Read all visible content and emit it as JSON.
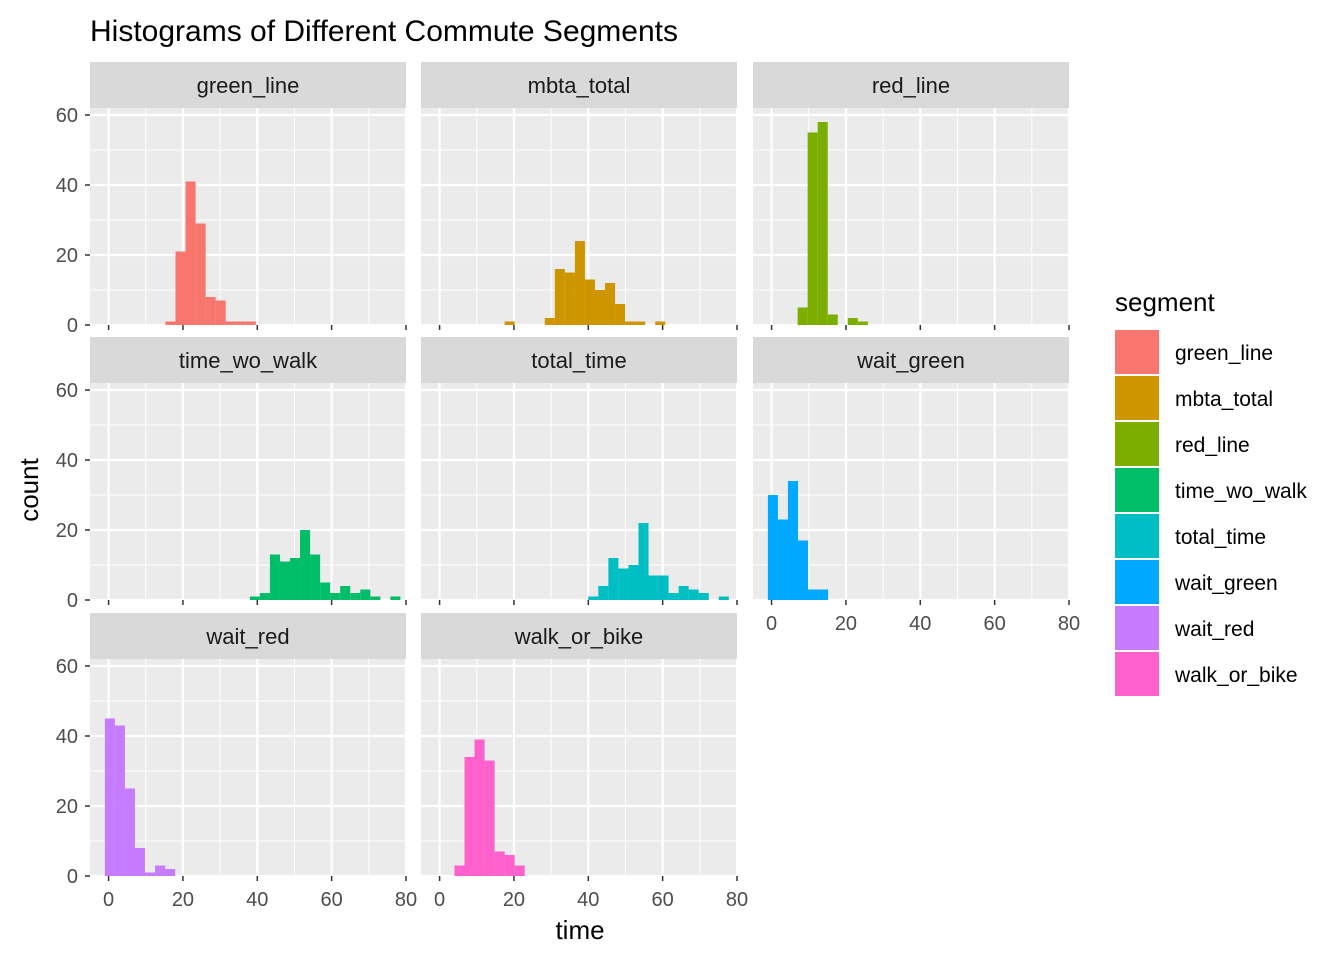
{
  "chart_data": {
    "type": "bar",
    "title": "Histograms of Different Commute Segments",
    "xlabel": "time",
    "ylabel": "count",
    "xlim": [
      -5,
      80
    ],
    "ylim": [
      0,
      62
    ],
    "x_ticks": [
      0,
      20,
      40,
      60,
      80
    ],
    "y_ticks": [
      0,
      20,
      40,
      60
    ],
    "bin_width": 2.7,
    "grid": true,
    "legend": {
      "title": "segment",
      "position": "right",
      "items": [
        {
          "label": "green_line",
          "color": "#F8766D"
        },
        {
          "label": "mbta_total",
          "color": "#CD9600"
        },
        {
          "label": "red_line",
          "color": "#7CAE00"
        },
        {
          "label": "time_wo_walk",
          "color": "#00BE67"
        },
        {
          "label": "total_time",
          "color": "#00BFC4"
        },
        {
          "label": "wait_green",
          "color": "#00A9FF"
        },
        {
          "label": "wait_red",
          "color": "#C77CFF"
        },
        {
          "label": "walk_or_bike",
          "color": "#FF61CC"
        }
      ]
    },
    "panels": [
      {
        "name": "green_line",
        "color": "#F8766D",
        "bins": [
          {
            "x0": 15.3,
            "x1": 18.0,
            "count": 1
          },
          {
            "x0": 18.0,
            "x1": 20.7,
            "count": 21
          },
          {
            "x0": 20.7,
            "x1": 23.4,
            "count": 41
          },
          {
            "x0": 23.4,
            "x1": 26.1,
            "count": 29
          },
          {
            "x0": 26.1,
            "x1": 28.8,
            "count": 8
          },
          {
            "x0": 28.8,
            "x1": 31.5,
            "count": 7
          },
          {
            "x0": 31.5,
            "x1": 34.2,
            "count": 1
          },
          {
            "x0": 34.2,
            "x1": 36.9,
            "count": 1
          },
          {
            "x0": 36.9,
            "x1": 39.6,
            "count": 1
          }
        ]
      },
      {
        "name": "mbta_total",
        "color": "#CD9600",
        "bins": [
          {
            "x0": 17.5,
            "x1": 20.2,
            "count": 1
          },
          {
            "x0": 28.3,
            "x1": 31.0,
            "count": 2
          },
          {
            "x0": 31.0,
            "x1": 33.7,
            "count": 16
          },
          {
            "x0": 33.7,
            "x1": 36.4,
            "count": 15
          },
          {
            "x0": 36.4,
            "x1": 39.1,
            "count": 24
          },
          {
            "x0": 39.1,
            "x1": 41.8,
            "count": 13
          },
          {
            "x0": 41.8,
            "x1": 44.5,
            "count": 10
          },
          {
            "x0": 44.5,
            "x1": 47.2,
            "count": 12
          },
          {
            "x0": 47.2,
            "x1": 49.9,
            "count": 6
          },
          {
            "x0": 49.9,
            "x1": 52.6,
            "count": 1
          },
          {
            "x0": 52.6,
            "x1": 55.3,
            "count": 1
          },
          {
            "x0": 58.0,
            "x1": 60.7,
            "count": 1
          }
        ]
      },
      {
        "name": "red_line",
        "color": "#7CAE00",
        "bins": [
          {
            "x0": 7.0,
            "x1": 9.7,
            "count": 5
          },
          {
            "x0": 9.7,
            "x1": 12.4,
            "count": 55
          },
          {
            "x0": 12.4,
            "x1": 15.1,
            "count": 58
          },
          {
            "x0": 15.1,
            "x1": 17.8,
            "count": 3
          },
          {
            "x0": 20.5,
            "x1": 23.2,
            "count": 2
          },
          {
            "x0": 23.2,
            "x1": 25.9,
            "count": 1
          }
        ]
      },
      {
        "name": "time_wo_walk",
        "color": "#00BE67",
        "bins": [
          {
            "x0": 38.0,
            "x1": 40.7,
            "count": 1
          },
          {
            "x0": 40.7,
            "x1": 43.4,
            "count": 2
          },
          {
            "x0": 43.4,
            "x1": 46.1,
            "count": 13
          },
          {
            "x0": 46.1,
            "x1": 48.8,
            "count": 11
          },
          {
            "x0": 48.8,
            "x1": 51.5,
            "count": 12
          },
          {
            "x0": 51.5,
            "x1": 54.2,
            "count": 20
          },
          {
            "x0": 54.2,
            "x1": 56.9,
            "count": 13
          },
          {
            "x0": 56.9,
            "x1": 59.6,
            "count": 5
          },
          {
            "x0": 59.6,
            "x1": 62.3,
            "count": 2
          },
          {
            "x0": 62.3,
            "x1": 65.0,
            "count": 4
          },
          {
            "x0": 65.0,
            "x1": 67.7,
            "count": 2
          },
          {
            "x0": 67.7,
            "x1": 70.4,
            "count": 3
          },
          {
            "x0": 70.4,
            "x1": 73.1,
            "count": 1
          },
          {
            "x0": 75.8,
            "x1": 78.5,
            "count": 1
          }
        ]
      },
      {
        "name": "total_time",
        "color": "#00BFC4",
        "bins": [
          {
            "x0": 40.0,
            "x1": 42.7,
            "count": 1
          },
          {
            "x0": 42.7,
            "x1": 45.4,
            "count": 4
          },
          {
            "x0": 45.4,
            "x1": 48.1,
            "count": 12
          },
          {
            "x0": 48.1,
            "x1": 50.8,
            "count": 9
          },
          {
            "x0": 50.8,
            "x1": 53.5,
            "count": 10
          },
          {
            "x0": 53.5,
            "x1": 56.2,
            "count": 22
          },
          {
            "x0": 56.2,
            "x1": 58.9,
            "count": 7
          },
          {
            "x0": 58.9,
            "x1": 61.6,
            "count": 7
          },
          {
            "x0": 61.6,
            "x1": 64.3,
            "count": 2
          },
          {
            "x0": 64.3,
            "x1": 67.0,
            "count": 4
          },
          {
            "x0": 67.0,
            "x1": 69.7,
            "count": 3
          },
          {
            "x0": 69.7,
            "x1": 72.4,
            "count": 2
          },
          {
            "x0": 75.1,
            "x1": 77.8,
            "count": 1
          }
        ]
      },
      {
        "name": "wait_green",
        "color": "#00A9FF",
        "bins": [
          {
            "x0": -1.0,
            "x1": 1.7,
            "count": 30
          },
          {
            "x0": 1.7,
            "x1": 4.4,
            "count": 23
          },
          {
            "x0": 4.4,
            "x1": 7.1,
            "count": 34
          },
          {
            "x0": 7.1,
            "x1": 9.8,
            "count": 17
          },
          {
            "x0": 9.8,
            "x1": 12.5,
            "count": 3
          },
          {
            "x0": 12.5,
            "x1": 15.2,
            "count": 3
          }
        ]
      },
      {
        "name": "wait_red",
        "color": "#C77CFF",
        "bins": [
          {
            "x0": -1.0,
            "x1": 1.7,
            "count": 45
          },
          {
            "x0": 1.7,
            "x1": 4.4,
            "count": 43
          },
          {
            "x0": 4.4,
            "x1": 7.1,
            "count": 25
          },
          {
            "x0": 7.1,
            "x1": 9.8,
            "count": 8
          },
          {
            "x0": 9.8,
            "x1": 12.5,
            "count": 1
          },
          {
            "x0": 12.5,
            "x1": 15.2,
            "count": 3
          },
          {
            "x0": 15.2,
            "x1": 17.9,
            "count": 2
          }
        ]
      },
      {
        "name": "walk_or_bike",
        "color": "#FF61CC",
        "bins": [
          {
            "x0": 4.0,
            "x1": 6.7,
            "count": 3
          },
          {
            "x0": 6.7,
            "x1": 9.4,
            "count": 34
          },
          {
            "x0": 9.4,
            "x1": 12.1,
            "count": 39
          },
          {
            "x0": 12.1,
            "x1": 14.8,
            "count": 33
          },
          {
            "x0": 14.8,
            "x1": 17.5,
            "count": 7
          },
          {
            "x0": 17.5,
            "x1": 20.2,
            "count": 6
          },
          {
            "x0": 20.2,
            "x1": 22.9,
            "count": 3
          }
        ]
      }
    ]
  }
}
